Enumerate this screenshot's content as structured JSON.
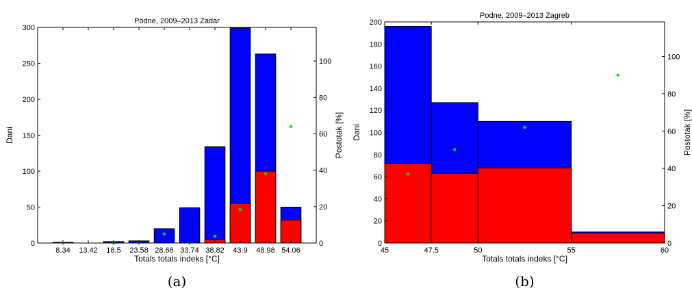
{
  "chart_data": [
    {
      "type": "bar",
      "title": "Podne, 2009–2013 Zadar",
      "xlabel": "Totals totals indeks [°C]",
      "ylabel": "Dani",
      "y2label": "Postotak [%]",
      "caption": "(a)",
      "categories": [
        "8.34",
        "13.42",
        "18.5",
        "23.58",
        "28.66",
        "33.74",
        "38.82",
        "43.9",
        "48.98",
        "54.06"
      ],
      "series": [
        {
          "color": "#0000ff",
          "values": [
            1,
            0,
            2,
            3,
            20,
            49,
            134,
            299,
            263,
            50
          ]
        },
        {
          "color": "#ff0000",
          "values": [
            0,
            0,
            0,
            0,
            0,
            0,
            5,
            55,
            100,
            32
          ]
        },
        {
          "color": "#00ff00",
          "axis": "right",
          "values": [
            0,
            null,
            0,
            0,
            5,
            0,
            3.7,
            18.4,
            38,
            64
          ]
        }
      ],
      "ylim": [
        0,
        300
      ],
      "yticks": [
        0,
        50,
        100,
        150,
        200,
        250,
        300
      ],
      "y2lim": [
        0,
        118.5
      ],
      "y2ticks": [
        0,
        20,
        40,
        60,
        80,
        100
      ]
    },
    {
      "type": "bar",
      "title": "Podne, 2009–2013 Zagreb",
      "xlabel": "Totals totals indeks [°C]",
      "ylabel": "Dani",
      "y2label": "Postotak [%]",
      "caption": "(b)",
      "bins": [
        [
          45,
          47.5
        ],
        [
          47.5,
          50
        ],
        [
          50,
          55
        ],
        [
          55,
          60
        ]
      ],
      "series": [
        {
          "color": "#0000ff",
          "values": [
            196,
            127,
            110,
            10
          ]
        },
        {
          "color": "#ff0000",
          "values": [
            72,
            63,
            68,
            9
          ]
        },
        {
          "color": "#00ff00",
          "axis": "right",
          "x": [
            46.25,
            48.75,
            52.5,
            57.5
          ],
          "values": [
            37,
            50,
            62,
            90
          ]
        }
      ],
      "xlim": [
        45,
        60
      ],
      "xticks": [
        45,
        47.5,
        50,
        55,
        60
      ],
      "xticklabels": [
        "45",
        "47.5",
        "50",
        "55",
        "60"
      ],
      "ylim": [
        0,
        200
      ],
      "yticks": [
        0,
        20,
        40,
        60,
        80,
        100,
        120,
        140,
        160,
        180,
        200
      ],
      "y2lim": [
        0,
        118.5
      ],
      "y2ticks": [
        0,
        20,
        40,
        60,
        80,
        100
      ]
    }
  ]
}
